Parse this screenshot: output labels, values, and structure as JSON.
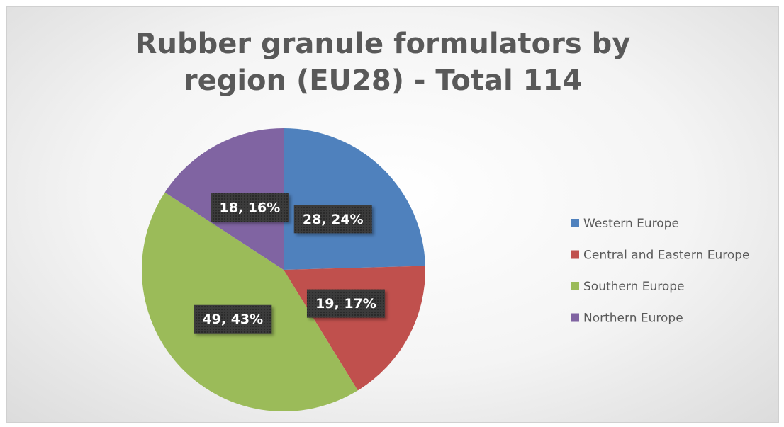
{
  "chart_data": {
    "type": "pie",
    "title": "Rubber granule formulators by region (EU28) - Total 114",
    "categories": [
      "Western Europe",
      "Central and Eastern Europe",
      "Southern Europe",
      "Northern Europe"
    ],
    "values": [
      28,
      19,
      49,
      18
    ],
    "value_labels": [
      "28, 24%",
      "19, 17%",
      "49, 43%",
      "18, 16%"
    ],
    "colors": [
      "#4f81bd",
      "#c0504d",
      "#9bbb59",
      "#8064a2"
    ],
    "legend": "right"
  }
}
